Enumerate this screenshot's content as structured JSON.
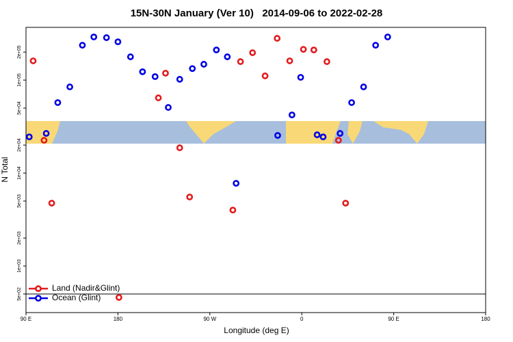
{
  "chart_data": {
    "type": "scatter",
    "title": "15N-30N January (Ver 10)   2014-09-06 to 2022-02-28",
    "xlabel": "Longitude (deg E)",
    "ylabel": "N Total",
    "xlim": [
      90,
      540
    ],
    "xticks": [
      {
        "value": 90,
        "label": "90 E"
      },
      180,
      {
        "value": 270,
        "label": "90 W"
      },
      {
        "value": 360,
        "label": "0"
      },
      {
        "value": 450,
        "label": "90 E"
      },
      {
        "value": 540,
        "label": "180"
      }
    ],
    "ylim": [
      316,
      369000
    ],
    "ylog": true,
    "yticks": [
      {
        "value": 500,
        "label": "5e+02"
      },
      {
        "value": 1000,
        "label": "1e+03"
      },
      {
        "value": 2000,
        "label": "2e+03"
      },
      {
        "value": 5000,
        "label": "5e+03"
      },
      {
        "value": 10000,
        "label": "1e+04"
      },
      {
        "value": 20000,
        "label": "2e+04"
      },
      {
        "value": 50000,
        "label": "5e+04"
      },
      {
        "value": 100000,
        "label": "1e+05"
      },
      {
        "value": 200000,
        "label": "2e+05"
      }
    ],
    "legend": "bottom-left",
    "series": [
      {
        "name": "Land (Nadir&Glint)",
        "color": "#e41a1c",
        "x": [
          97,
          107.7,
          115.2,
          181,
          219.6,
          226.6,
          240.5,
          250.2,
          292.5,
          300,
          311.8,
          324.1,
          335.9,
          348.2,
          361.6,
          371.8,
          384.6,
          395.9,
          402.9
        ],
        "values": [
          161000,
          22500,
          4750,
          460,
          64400,
          118600,
          18700,
          5530,
          4000,
          158000,
          197000,
          111000,
          281000,
          161000,
          214000,
          211000,
          158000,
          22500,
          4750
        ]
      },
      {
        "name": "Ocean (Glint)",
        "color": "#0000e6",
        "x": [
          93.2,
          109.8,
          121.1,
          132.9,
          145.2,
          156.4,
          168.8,
          180,
          192.3,
          204.1,
          216.4,
          229.3,
          240.5,
          252.9,
          264.1,
          276.4,
          287.1,
          295.7,
          336.4,
          350.4,
          358.9,
          375,
          380.9,
          397.5,
          408.8,
          420.5,
          432.3,
          444.1
        ],
        "values": [
          24500,
          26700,
          57300,
          84500,
          237000,
          291000,
          286000,
          258000,
          178000,
          123000,
          109000,
          50800,
          102000,
          133000,
          148000,
          211000,
          178000,
          7760,
          25400,
          42200,
          107000,
          25800,
          24500,
          26700,
          57300,
          84500,
          237000,
          291000
        ]
      }
    ]
  }
}
